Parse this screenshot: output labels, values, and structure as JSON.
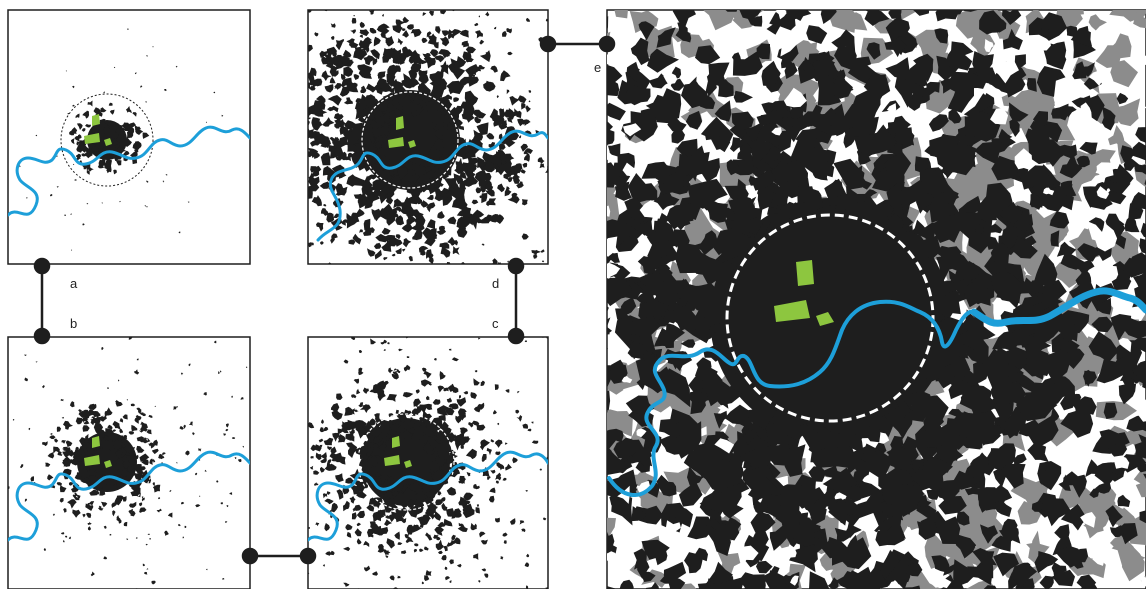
{
  "figure": {
    "panels": [
      {
        "id": "a",
        "label": "a",
        "urban_extent": "small"
      },
      {
        "id": "b",
        "label": "b",
        "urban_extent": "growing"
      },
      {
        "id": "c",
        "label": "c",
        "urban_extent": "large"
      },
      {
        "id": "d",
        "label": "d",
        "urban_extent": "larger"
      },
      {
        "id": "e",
        "label": "e",
        "urban_extent": "full",
        "has_grey_layer": true
      }
    ],
    "connectors": [
      {
        "from": "a",
        "to": "b"
      },
      {
        "from": "b",
        "to": "c"
      },
      {
        "from": "c",
        "to": "d"
      },
      {
        "from": "d",
        "to": "e"
      }
    ],
    "layers": [
      {
        "name": "urban-area",
        "color": "#1e1e1e"
      },
      {
        "name": "secondary-urban",
        "color": "#8c8c8c"
      },
      {
        "name": "river",
        "color": "#1d9fd9"
      },
      {
        "name": "parks",
        "color": "#8dc63f"
      },
      {
        "name": "boundary-circle",
        "color": "#ffffff"
      }
    ],
    "icons": {
      "connector-node": "filled-circle",
      "boundary": "dashed-circle",
      "river": "wavy-line"
    }
  }
}
